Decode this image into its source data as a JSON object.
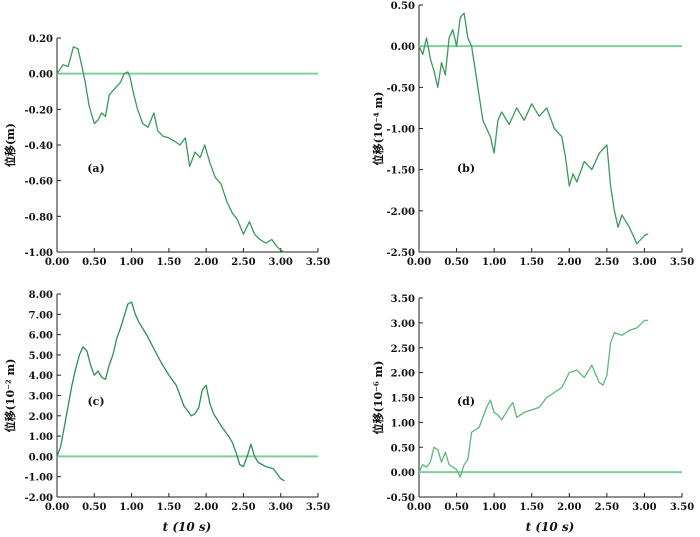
{
  "chart_data": [
    {
      "type": "line",
      "panel_label": "(a)",
      "ylabel": "位移(m)",
      "xlim": [
        0,
        3.5
      ],
      "ylim": [
        -1.0,
        0.2
      ],
      "xticks": [
        "0.00",
        "0.50",
        "1.00",
        "1.50",
        "2.00",
        "2.50",
        "3.00",
        "3.50"
      ],
      "yticks": [
        "0.20",
        "0.00",
        "-0.20",
        "-0.40",
        "-0.60",
        "-0.80",
        "-1.00"
      ],
      "yticks_values": [
        0.2,
        0.0,
        -0.2,
        -0.4,
        -0.6,
        -0.8,
        -1.0
      ],
      "reference_line": 0,
      "color": "#3a9a5a",
      "x": [
        0.0,
        0.08,
        0.15,
        0.22,
        0.28,
        0.33,
        0.38,
        0.43,
        0.5,
        0.55,
        0.6,
        0.65,
        0.7,
        0.78,
        0.85,
        0.9,
        0.95,
        0.98,
        1.02,
        1.08,
        1.15,
        1.22,
        1.3,
        1.35,
        1.42,
        1.5,
        1.58,
        1.65,
        1.72,
        1.78,
        1.85,
        1.92,
        1.98,
        2.05,
        2.12,
        2.2,
        2.28,
        2.35,
        2.42,
        2.5,
        2.58,
        2.65,
        2.72,
        2.8,
        2.88,
        2.95,
        3.0,
        3.05
      ],
      "y": [
        0.0,
        0.05,
        0.04,
        0.15,
        0.14,
        0.05,
        -0.05,
        -0.18,
        -0.28,
        -0.26,
        -0.22,
        -0.24,
        -0.12,
        -0.08,
        -0.05,
        0.0,
        0.01,
        -0.02,
        -0.1,
        -0.2,
        -0.28,
        -0.3,
        -0.22,
        -0.32,
        -0.35,
        -0.36,
        -0.38,
        -0.4,
        -0.36,
        -0.52,
        -0.44,
        -0.47,
        -0.4,
        -0.5,
        -0.58,
        -0.62,
        -0.72,
        -0.78,
        -0.82,
        -0.9,
        -0.83,
        -0.9,
        -0.93,
        -0.95,
        -0.93,
        -0.97,
        -0.99,
        -1.0
      ]
    },
    {
      "type": "line",
      "panel_label": "(b)",
      "ylabel": "位移(10⁻⁴ m)",
      "xlim": [
        0,
        3.5
      ],
      "ylim": [
        -2.5,
        0.5
      ],
      "xticks": [
        "0.00",
        "0.50",
        "1.00",
        "1.50",
        "2.00",
        "2.50",
        "3.00",
        "3.50"
      ],
      "yticks": [
        "0.50",
        "0.00",
        "-0.50",
        "-1.00",
        "-1.50",
        "-2.00",
        "-2.50"
      ],
      "yticks_values": [
        0.5,
        0.0,
        -0.5,
        -1.0,
        -1.5,
        -2.0,
        -2.5
      ],
      "reference_line": 0,
      "color": "#3a9a5a",
      "x": [
        0.0,
        0.05,
        0.1,
        0.15,
        0.2,
        0.25,
        0.3,
        0.35,
        0.4,
        0.45,
        0.5,
        0.55,
        0.6,
        0.65,
        0.7,
        0.75,
        0.8,
        0.85,
        0.9,
        0.95,
        1.0,
        1.05,
        1.1,
        1.2,
        1.3,
        1.4,
        1.5,
        1.6,
        1.7,
        1.8,
        1.9,
        1.95,
        2.0,
        2.05,
        2.1,
        2.2,
        2.3,
        2.4,
        2.5,
        2.55,
        2.6,
        2.65,
        2.7,
        2.8,
        2.9,
        3.0,
        3.05
      ],
      "y": [
        0.0,
        -0.1,
        0.1,
        -0.15,
        -0.3,
        -0.5,
        -0.2,
        -0.35,
        0.1,
        0.2,
        0.0,
        0.35,
        0.4,
        0.1,
        0.0,
        -0.3,
        -0.6,
        -0.9,
        -1.0,
        -1.1,
        -1.3,
        -0.9,
        -0.8,
        -0.95,
        -0.75,
        -0.9,
        -0.7,
        -0.85,
        -0.75,
        -1.0,
        -1.1,
        -1.35,
        -1.7,
        -1.55,
        -1.65,
        -1.4,
        -1.5,
        -1.3,
        -1.2,
        -1.7,
        -2.0,
        -2.2,
        -2.05,
        -2.2,
        -2.4,
        -2.3,
        -2.28
      ]
    },
    {
      "type": "line",
      "panel_label": "(c)",
      "ylabel": "位移(10⁻² m)",
      "xlim": [
        0,
        3.5
      ],
      "ylim": [
        -2.0,
        8.0
      ],
      "xticks": [
        "0.00",
        "0.50",
        "1.00",
        "1.50",
        "2.00",
        "2.50",
        "3.00",
        "3.50"
      ],
      "yticks": [
        "8.00",
        "7.00",
        "6.00",
        "5.00",
        "4.00",
        "3.00",
        "2.00",
        "1.00",
        "0.00",
        "-1.00",
        "-2.00"
      ],
      "yticks_values": [
        8.0,
        7.0,
        6.0,
        5.0,
        4.0,
        3.0,
        2.0,
        1.0,
        0.0,
        -1.0,
        -2.0
      ],
      "reference_line": 0,
      "color": "#2e8f50",
      "x": [
        0.0,
        0.05,
        0.1,
        0.15,
        0.2,
        0.25,
        0.3,
        0.35,
        0.4,
        0.45,
        0.5,
        0.55,
        0.6,
        0.65,
        0.7,
        0.75,
        0.8,
        0.85,
        0.9,
        0.95,
        1.0,
        1.05,
        1.1,
        1.2,
        1.3,
        1.4,
        1.5,
        1.6,
        1.7,
        1.8,
        1.85,
        1.9,
        1.95,
        2.0,
        2.05,
        2.1,
        2.2,
        2.3,
        2.35,
        2.4,
        2.45,
        2.5,
        2.55,
        2.6,
        2.65,
        2.7,
        2.8,
        2.9,
        3.0,
        3.05
      ],
      "y": [
        0.0,
        0.5,
        1.5,
        2.5,
        3.5,
        4.3,
        5.0,
        5.4,
        5.2,
        4.5,
        4.0,
        4.2,
        3.9,
        3.8,
        4.5,
        5.0,
        5.8,
        6.3,
        6.9,
        7.5,
        7.6,
        7.0,
        6.6,
        6.0,
        5.3,
        4.6,
        4.0,
        3.5,
        2.5,
        2.0,
        2.1,
        2.4,
        3.3,
        3.5,
        2.6,
        2.1,
        1.5,
        1.0,
        0.7,
        0.2,
        -0.4,
        -0.5,
        0.0,
        0.6,
        0.0,
        -0.3,
        -0.5,
        -0.6,
        -1.1,
        -1.2
      ]
    },
    {
      "type": "line",
      "panel_label": "(d)",
      "ylabel": "位移(10⁻⁶ m)",
      "xlim": [
        0,
        3.5
      ],
      "ylim": [
        -0.5,
        3.5
      ],
      "xticks": [
        "0.00",
        "0.50",
        "1.00",
        "1.50",
        "2.00",
        "2.50",
        "3.00",
        "3.50"
      ],
      "yticks": [
        "3.50",
        "3.00",
        "2.50",
        "2.00",
        "1.50",
        "1.00",
        "0.50",
        "0.00",
        "-0.50"
      ],
      "yticks_values": [
        3.5,
        3.0,
        2.5,
        2.0,
        1.5,
        1.0,
        0.5,
        0.0,
        -0.5
      ],
      "reference_line": 0,
      "color": "#5cb87a",
      "x": [
        0.0,
        0.05,
        0.1,
        0.15,
        0.2,
        0.25,
        0.3,
        0.35,
        0.4,
        0.45,
        0.5,
        0.55,
        0.6,
        0.65,
        0.7,
        0.8,
        0.9,
        0.95,
        1.0,
        1.05,
        1.1,
        1.2,
        1.25,
        1.3,
        1.4,
        1.5,
        1.6,
        1.7,
        1.8,
        1.9,
        2.0,
        2.1,
        2.2,
        2.3,
        2.4,
        2.45,
        2.5,
        2.55,
        2.6,
        2.7,
        2.8,
        2.9,
        3.0,
        3.05
      ],
      "y": [
        0.0,
        0.15,
        0.1,
        0.2,
        0.5,
        0.45,
        0.2,
        0.4,
        0.15,
        0.1,
        0.05,
        -0.1,
        0.15,
        0.25,
        0.8,
        0.9,
        1.3,
        1.45,
        1.2,
        1.15,
        1.05,
        1.3,
        1.4,
        1.1,
        1.2,
        1.25,
        1.3,
        1.5,
        1.6,
        1.7,
        2.0,
        2.05,
        1.9,
        2.15,
        1.8,
        1.75,
        1.95,
        2.6,
        2.8,
        2.75,
        2.85,
        2.9,
        3.05,
        3.05
      ]
    }
  ],
  "xlabel": "t (10 s)"
}
